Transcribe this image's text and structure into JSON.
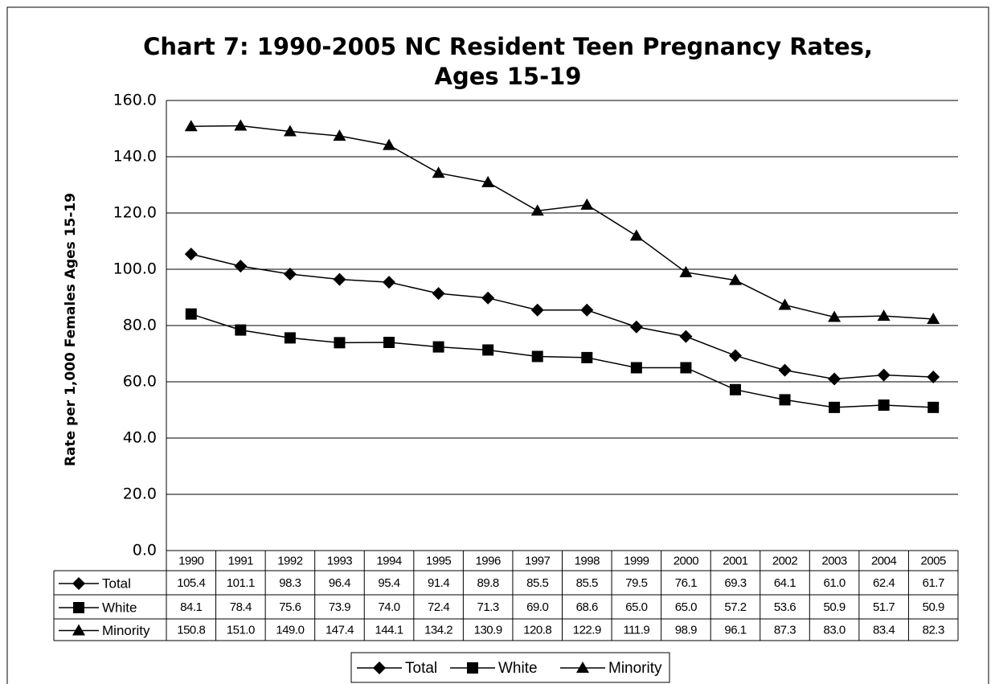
{
  "chart_data": {
    "type": "line",
    "title": "Chart 7: 1990-2005 NC Resident Teen Pregnancy Rates,",
    "subtitle": "Ages 15-19",
    "y_label": "Rate per 1,000 Females Ages 15-19",
    "categories": [
      "1990",
      "1991",
      "1992",
      "1993",
      "1994",
      "1995",
      "1996",
      "1997",
      "1998",
      "1999",
      "2000",
      "2001",
      "2002",
      "2003",
      "2004",
      "2005"
    ],
    "series": [
      {
        "name": "Total",
        "color": "#000000",
        "marker": "diamond",
        "values": [
          105.4,
          101.1,
          98.3,
          96.4,
          95.4,
          91.4,
          89.8,
          85.5,
          85.5,
          79.5,
          76.1,
          69.3,
          64.1,
          61.0,
          62.4,
          61.7
        ],
        "value_labels": [
          "105.4",
          "101.1",
          "98.3",
          "96.4",
          "95.4",
          "91.4",
          "89.8",
          "85.5",
          "85.5",
          "79.5",
          "76.1",
          "69.3",
          "64.1",
          "61.0",
          "62.4",
          "61.7"
        ]
      },
      {
        "name": "White",
        "color": "#000000",
        "marker": "square",
        "values": [
          84.1,
          78.4,
          75.6,
          73.9,
          74.0,
          72.4,
          71.3,
          69.0,
          68.6,
          65.0,
          65.0,
          57.2,
          53.6,
          50.9,
          51.7,
          50.9
        ],
        "value_labels": [
          "84.1",
          "78.4",
          "75.6",
          "73.9",
          "74.0",
          "72.4",
          "71.3",
          "69.0",
          "68.6",
          "65.0",
          "65.0",
          "57.2",
          "53.6",
          "50.9",
          "51.7",
          "50.9"
        ]
      },
      {
        "name": "Minority",
        "color": "#000000",
        "marker": "triangle",
        "values": [
          150.8,
          151.0,
          149.0,
          147.4,
          144.1,
          134.2,
          130.9,
          120.8,
          122.9,
          111.9,
          98.9,
          96.1,
          87.3,
          83.0,
          83.4,
          82.3
        ],
        "value_labels": [
          "150.8",
          "151.0",
          "149.0",
          "147.4",
          "144.1",
          "134.2",
          "130.9",
          "120.8",
          "122.9",
          "111.9",
          "98.9",
          "96.1",
          "87.3",
          "83.0",
          "83.4",
          "82.3"
        ]
      }
    ],
    "ylim": [
      0,
      160
    ],
    "yticks": [
      {
        "value": 0,
        "label": "0.0"
      },
      {
        "value": 20,
        "label": "20.0"
      },
      {
        "value": 40,
        "label": "40.0"
      },
      {
        "value": 60,
        "label": "60.0"
      },
      {
        "value": 80,
        "label": "80.0"
      },
      {
        "value": 100,
        "label": "100.0"
      },
      {
        "value": 120,
        "label": "120.0"
      },
      {
        "value": 140,
        "label": "140.0"
      },
      {
        "value": 160,
        "label": "160.0"
      }
    ],
    "grid": true
  }
}
